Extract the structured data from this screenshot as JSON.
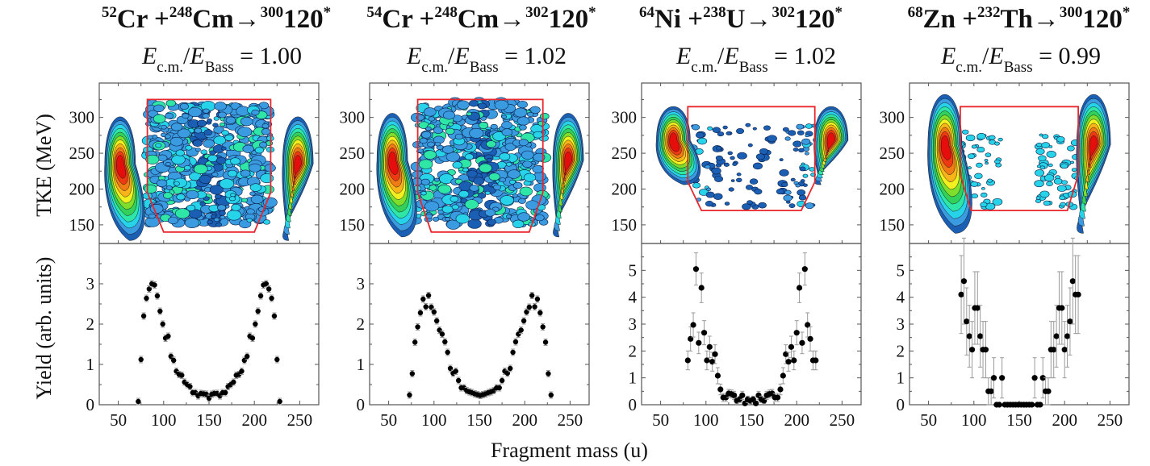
{
  "figure": {
    "xlabel": "Fragment mass (u)",
    "ylabel_top": "TKE (MeV)",
    "ylabel_bottom": "Yield (arb. units)"
  },
  "colors": {
    "gate": "#e8262b",
    "contour_levels": [
      "#1a5fb4",
      "#3a9be0",
      "#27d3e8",
      "#2ee6a6",
      "#34d15a",
      "#7ede2b",
      "#f2f01e",
      "#f8b419",
      "#f07a14",
      "#ee3a12",
      "#e60d0d"
    ],
    "points": "#000000",
    "errorbar": "#9a9a9a",
    "axis": "#555555"
  },
  "panels": [
    {
      "reaction": {
        "proj_A": "52",
        "proj": "Cr",
        "plus": " +",
        "targ_A": "248",
        "targ": "Cm",
        "arrow": "→",
        "cn_A": "300",
        "cn": "120",
        "star": "*"
      },
      "energy": {
        "E": "E",
        "cm": "c.m.",
        "slash": "/",
        "bass": "Bass",
        "eq": "= 1.00"
      }
    },
    {
      "reaction": {
        "proj_A": "54",
        "proj": "Cr",
        "plus": " +",
        "targ_A": "248",
        "targ": "Cm",
        "arrow": "→",
        "cn_A": "302",
        "cn": "120",
        "star": "*"
      },
      "energy": {
        "E": "E",
        "cm": "c.m.",
        "slash": "/",
        "bass": "Bass",
        "eq": "= 1.02"
      }
    },
    {
      "reaction": {
        "proj_A": "64",
        "proj": "Ni",
        "plus": " +",
        "targ_A": "238",
        "targ": "U",
        "arrow": "→",
        "cn_A": "302",
        "cn": "120",
        "star": "*"
      },
      "energy": {
        "E": "E",
        "cm": "c.m.",
        "slash": "/",
        "bass": "Bass",
        "eq": "= 1.02"
      }
    },
    {
      "reaction": {
        "proj_A": "68",
        "proj": "Zn",
        "plus": " +",
        "targ_A": "232",
        "targ": "Th",
        "arrow": "→",
        "cn_A": "300",
        "cn": "120",
        "star": "*"
      },
      "energy": {
        "E": "E",
        "cm": "c.m.",
        "slash": "/",
        "bass": "Bass",
        "eq": "= 0.99"
      }
    }
  ],
  "chart_data": [
    {
      "type": "heatmap",
      "title": "52Cr + 248Cm → 300120* ; Ecm/EBass = 1.00",
      "xlabel": "Fragment mass (u)",
      "ylabel": "TKE (MeV)",
      "xlim": [
        29,
        271
      ],
      "ylim": [
        124,
        348
      ],
      "xticks": [
        50,
        100,
        150,
        200,
        250
      ],
      "yticks": [
        150,
        200,
        250,
        300
      ],
      "ytick_labels": [
        "150",
        "200",
        "250",
        "300"
      ],
      "quasi_elastic_peaks": [
        {
          "mass": 52,
          "tke": 235
        },
        {
          "mass": 248,
          "tke": 235
        }
      ],
      "mass_symmetric_region": {
        "mass_range": [
          82,
          218
        ],
        "tke_range": [
          150,
          320
        ]
      },
      "gate_polygon": [
        [
          82,
          325
        ],
        [
          218,
          325
        ],
        [
          218,
          195
        ],
        [
          200,
          140
        ],
        [
          100,
          140
        ],
        [
          82,
          195
        ]
      ]
    },
    {
      "type": "scatter",
      "title": "52Cr + 248Cm → 300120* mass yield",
      "xlabel": "Fragment mass (u)",
      "ylabel": "Yield (arb. units)",
      "xlim": [
        29,
        271
      ],
      "ylim": [
        0,
        4
      ],
      "xticks": [
        50,
        100,
        150,
        200,
        250
      ],
      "yticks": [
        0,
        1,
        2,
        3
      ],
      "xtick_labels": [
        "50",
        "100",
        "150",
        "200",
        "250"
      ],
      "ytick_labels": [
        "0",
        "1",
        "2",
        "3"
      ],
      "x": [
        72,
        75,
        78,
        81,
        84,
        87,
        90,
        93,
        96,
        99,
        102,
        105,
        108,
        111,
        114,
        117,
        120,
        123,
        126,
        129,
        132,
        135,
        138,
        141,
        144,
        147,
        150,
        153,
        156,
        159,
        162,
        165,
        168,
        171,
        174,
        177,
        180,
        183,
        186,
        189,
        192,
        195,
        198,
        201,
        204,
        207,
        210,
        213,
        216,
        219,
        222,
        225,
        228
      ],
      "y": [
        0.08,
        1.12,
        2.2,
        2.64,
        2.87,
        3.0,
        2.97,
        2.7,
        2.32,
        2.0,
        1.65,
        1.7,
        1.2,
        1.1,
        0.83,
        0.75,
        0.73,
        0.56,
        0.5,
        0.45,
        0.3,
        0.3,
        0.22,
        0.28,
        0.27,
        0.26,
        0.16,
        0.26,
        0.28,
        0.28,
        0.22,
        0.3,
        0.3,
        0.45,
        0.5,
        0.56,
        0.73,
        0.75,
        0.83,
        1.1,
        1.2,
        1.7,
        1.65,
        2.0,
        2.32,
        2.7,
        2.97,
        3.0,
        2.87,
        2.64,
        2.2,
        1.12,
        0.08
      ],
      "yerr": 0.08
    },
    {
      "type": "heatmap",
      "title": "54Cr + 248Cm → 302120* ; Ecm/EBass = 1.02",
      "xlabel": "Fragment mass (u)",
      "ylabel": "TKE (MeV)",
      "xlim": [
        29,
        271
      ],
      "ylim": [
        124,
        348
      ],
      "xticks": [
        50,
        100,
        150,
        200,
        250
      ],
      "yticks": [
        150,
        200,
        250,
        300
      ],
      "ytick_labels": [
        "150",
        "200",
        "250",
        "300"
      ],
      "quasi_elastic_peaks": [
        {
          "mass": 54,
          "tke": 240
        },
        {
          "mass": 248,
          "tke": 240
        }
      ],
      "mass_symmetric_region": {
        "mass_range": [
          80,
          222
        ],
        "tke_range": [
          150,
          322
        ]
      },
      "gate_polygon": [
        [
          82,
          325
        ],
        [
          220,
          325
        ],
        [
          220,
          195
        ],
        [
          205,
          140
        ],
        [
          97,
          140
        ],
        [
          82,
          195
        ]
      ]
    },
    {
      "type": "scatter",
      "title": "54Cr + 248Cm → 302120* mass yield",
      "xlabel": "Fragment mass (u)",
      "ylabel": "Yield (arb. units)",
      "xlim": [
        29,
        271
      ],
      "ylim": [
        0,
        4
      ],
      "xticks": [
        50,
        100,
        150,
        200,
        250
      ],
      "yticks": [
        0,
        1,
        2,
        3
      ],
      "xtick_labels": [
        "50",
        "100",
        "150",
        "200",
        "250"
      ],
      "ytick_labels": [
        "0",
        "1",
        "2",
        "3"
      ],
      "x": [
        73,
        76,
        79,
        82,
        85,
        88,
        91,
        94,
        97,
        100,
        103,
        106,
        109,
        112,
        115,
        118,
        121,
        124,
        127,
        130,
        133,
        136,
        139,
        142,
        145,
        148,
        151,
        154,
        157,
        160,
        163,
        166,
        169,
        172,
        175,
        178,
        181,
        184,
        187,
        190,
        193,
        196,
        199,
        202,
        205,
        208,
        211,
        214,
        217,
        220,
        223,
        226,
        229
      ],
      "y": [
        0.24,
        0.77,
        1.55,
        1.93,
        2.28,
        2.62,
        2.43,
        2.71,
        2.42,
        2.3,
        2.08,
        1.85,
        1.75,
        1.56,
        1.3,
        0.9,
        0.78,
        0.83,
        0.6,
        0.42,
        0.42,
        0.35,
        0.32,
        0.3,
        0.27,
        0.25,
        0.23,
        0.25,
        0.27,
        0.3,
        0.32,
        0.35,
        0.42,
        0.42,
        0.6,
        0.83,
        0.78,
        0.9,
        1.3,
        1.56,
        1.75,
        1.85,
        2.08,
        2.3,
        2.42,
        2.71,
        2.43,
        2.62,
        2.28,
        1.93,
        1.55,
        0.77,
        0.24
      ],
      "yerr": 0.08
    },
    {
      "type": "heatmap",
      "title": "64Ni + 238U → 302120* ; Ecm/EBass = 1.02",
      "xlabel": "Fragment mass (u)",
      "ylabel": "TKE (MeV)",
      "xlim": [
        29,
        271
      ],
      "ylim": [
        124,
        348
      ],
      "xticks": [
        50,
        100,
        150,
        200,
        250
      ],
      "yticks": [
        150,
        200,
        250,
        300
      ],
      "ytick_labels": [
        "150",
        "200",
        "250",
        "300"
      ],
      "quasi_elastic_peaks": [
        {
          "mass": 64,
          "tke": 268
        },
        {
          "mass": 238,
          "tke": 268
        }
      ],
      "mass_symmetric_region": {
        "mass_range": [
          80,
          222
        ],
        "tke_range": [
          175,
          290
        ]
      },
      "gate_polygon": [
        [
          80,
          315
        ],
        [
          220,
          315
        ],
        [
          220,
          210
        ],
        [
          205,
          170
        ],
        [
          95,
          170
        ],
        [
          80,
          210
        ]
      ]
    },
    {
      "type": "scatter",
      "title": "64Ni + 238U → 302120* mass yield",
      "xlabel": "Fragment mass (u)",
      "ylabel": "Yield (arb. units)",
      "xlim": [
        29,
        271
      ],
      "ylim": [
        0,
        6
      ],
      "xticks": [
        50,
        100,
        150,
        200,
        250
      ],
      "yticks": [
        0,
        1,
        2,
        3,
        4,
        5
      ],
      "xtick_labels": [
        "50",
        "100",
        "150",
        "200",
        "250"
      ],
      "ytick_labels": [
        "0",
        "1",
        "2",
        "3",
        "4",
        "5"
      ],
      "x": [
        80,
        83,
        86,
        89,
        92,
        95,
        98,
        101,
        104,
        107,
        110,
        113,
        116,
        119,
        122,
        125,
        128,
        131,
        134,
        137,
        140,
        143,
        146,
        149,
        152,
        155,
        158,
        161,
        164,
        167,
        170,
        173,
        176,
        179,
        182,
        185,
        188,
        191,
        194,
        197,
        200,
        203,
        206,
        209,
        212,
        215,
        218,
        221
      ],
      "y": [
        1.65,
        2.45,
        2.97,
        5.05,
        2.3,
        4.35,
        2.68,
        1.65,
        2.15,
        1.6,
        1.88,
        1.08,
        0.57,
        0.27,
        0.27,
        0.42,
        0.4,
        0.35,
        0.15,
        0.2,
        0.35,
        0.05,
        0.2,
        0.15,
        0.2,
        0.05,
        0.35,
        0.2,
        0.15,
        0.35,
        0.4,
        0.42,
        0.27,
        0.27,
        0.57,
        1.08,
        1.88,
        1.6,
        2.15,
        1.65,
        2.68,
        4.35,
        2.3,
        5.05,
        2.97,
        2.45,
        1.65,
        1.65
      ],
      "yerr": [
        0.35,
        0.45,
        0.45,
        0.6,
        0.4,
        0.55,
        0.45,
        0.35,
        0.4,
        0.35,
        0.35,
        0.3,
        0.2,
        0.15,
        0.15,
        0.15,
        0.15,
        0.15,
        0.1,
        0.12,
        0.15,
        0.08,
        0.12,
        0.1,
        0.12,
        0.08,
        0.15,
        0.12,
        0.1,
        0.15,
        0.15,
        0.15,
        0.15,
        0.15,
        0.2,
        0.3,
        0.35,
        0.35,
        0.4,
        0.35,
        0.45,
        0.55,
        0.4,
        0.6,
        0.45,
        0.45,
        0.35,
        0.35
      ]
    },
    {
      "type": "heatmap",
      "title": "68Zn + 232Th → 300120* ; Ecm/EBass = 0.99",
      "xlabel": "Fragment mass (u)",
      "ylabel": "TKE (MeV)",
      "xlim": [
        29,
        271
      ],
      "ylim": [
        124,
        348
      ],
      "xticks": [
        50,
        100,
        150,
        200,
        250
      ],
      "yticks": [
        150,
        200,
        250,
        300
      ],
      "ytick_labels": [
        "150",
        "200",
        "250",
        "300"
      ],
      "quasi_elastic_peaks": [
        {
          "mass": 68,
          "tke": 262
        },
        {
          "mass": 232,
          "tke": 262
        }
      ],
      "mass_symmetric_region": {
        "mass_range": [
          85,
          215
        ],
        "tke_range": [
          175,
          280
        ]
      },
      "gate_polygon": [
        [
          85,
          315
        ],
        [
          215,
          315
        ],
        [
          215,
          220
        ],
        [
          203,
          170
        ],
        [
          97,
          170
        ],
        [
          85,
          220
        ]
      ]
    },
    {
      "type": "scatter",
      "title": "68Zn + 232Th → 300120* mass yield",
      "xlabel": "Fragment mass (u)",
      "ylabel": "Yield (arb. units)",
      "xlim": [
        29,
        271
      ],
      "ylim": [
        0,
        6
      ],
      "xticks": [
        50,
        100,
        150,
        200,
        250
      ],
      "yticks": [
        0,
        1,
        2,
        3,
        4,
        5
      ],
      "xtick_labels": [
        "50",
        "100",
        "150",
        "200",
        "250"
      ],
      "ytick_labels": [
        "0",
        "1",
        "2",
        "3",
        "4",
        "5"
      ],
      "x": [
        86,
        89,
        92,
        95,
        98,
        101,
        104,
        107,
        110,
        113,
        116,
        119,
        122,
        125,
        128,
        131,
        134,
        137,
        140,
        143,
        146,
        149,
        152,
        155,
        158,
        161,
        164,
        167,
        170,
        173,
        176,
        179,
        182,
        185,
        188,
        191,
        194,
        197,
        200,
        203,
        206,
        209,
        212,
        215
      ],
      "y": [
        4.1,
        4.6,
        3.1,
        2.55,
        2.05,
        3.6,
        3.6,
        2.55,
        2.05,
        2.05,
        0.5,
        0.5,
        1.0,
        0,
        0,
        1.0,
        0,
        0,
        0,
        0,
        0,
        0,
        0,
        0,
        0,
        0,
        0,
        1.0,
        0,
        0,
        1.0,
        0.5,
        0.5,
        2.05,
        2.05,
        2.55,
        3.6,
        3.6,
        2.05,
        2.55,
        3.1,
        4.6,
        4.1,
        4.1
      ],
      "yerr": [
        1.45,
        1.6,
        1.25,
        1.15,
        1.05,
        1.35,
        1.35,
        1.15,
        1.05,
        1.05,
        0.5,
        0.5,
        0.75,
        0,
        0,
        0.75,
        0,
        0,
        0,
        0,
        0,
        0,
        0,
        0,
        0,
        0,
        0,
        0.75,
        0,
        0,
        0.75,
        0.5,
        0.5,
        1.05,
        1.05,
        1.15,
        1.35,
        1.35,
        1.05,
        1.15,
        1.25,
        1.6,
        1.45,
        1.45
      ]
    }
  ]
}
